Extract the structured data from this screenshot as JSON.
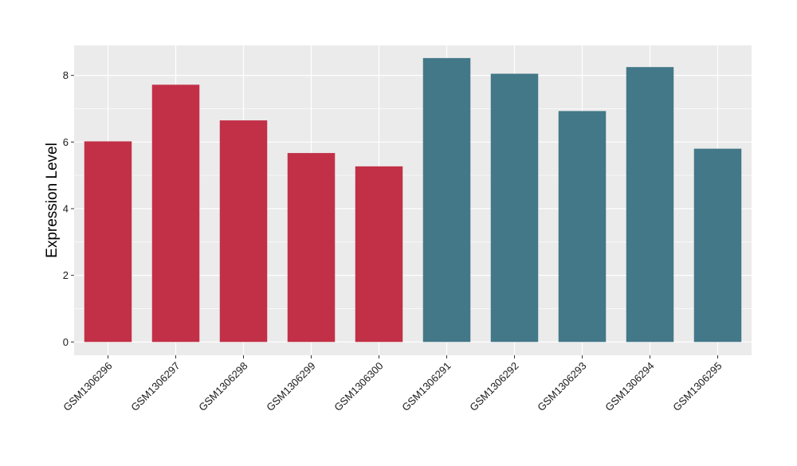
{
  "chart_data": {
    "type": "bar",
    "title": "",
    "xlabel": "",
    "ylabel": "Expression Level",
    "categories": [
      "GSM1306296",
      "GSM1306297",
      "GSM1306298",
      "GSM1306299",
      "GSM1306300",
      "GSM1306291",
      "GSM1306292",
      "GSM1306293",
      "GSM1306294",
      "GSM1306295"
    ],
    "values": [
      6.02,
      7.72,
      6.65,
      5.67,
      5.27,
      8.52,
      8.05,
      6.93,
      8.25,
      5.8
    ],
    "bar_colors": [
      "#c23047",
      "#c23047",
      "#c23047",
      "#c23047",
      "#c23047",
      "#437889",
      "#437889",
      "#437889",
      "#437889",
      "#437889"
    ],
    "ylim": [
      -0.4,
      8.9
    ],
    "yticks": [
      0,
      2,
      4,
      6,
      8
    ],
    "grid": true,
    "legend": "none",
    "panel_background": "#ebebeb",
    "gridline_color": "#ffffff"
  }
}
